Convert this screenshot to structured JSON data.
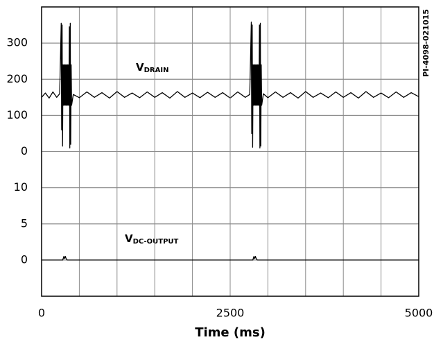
{
  "chart_data": [
    {
      "type": "line",
      "label": "V",
      "label_sub": "DRAIN",
      "annotation": "PI-4098-021015",
      "color": "#000000",
      "xlim": [
        0,
        5000
      ],
      "ylim": [
        0,
        400
      ],
      "yticks": [
        0,
        100,
        200,
        300
      ],
      "grid": true,
      "x": [
        0,
        50,
        100,
        150,
        200,
        240,
        260,
        266,
        272,
        278,
        284,
        290,
        296,
        302,
        308,
        314,
        320,
        326,
        332,
        338,
        344,
        350,
        356,
        362,
        368,
        374,
        380,
        386,
        392,
        398,
        420,
        500,
        600,
        700,
        800,
        900,
        1000,
        1100,
        1200,
        1300,
        1400,
        1500,
        1600,
        1700,
        1800,
        1900,
        2000,
        2100,
        2200,
        2300,
        2400,
        2500,
        2600,
        2700,
        2760,
        2780,
        2786,
        2792,
        2798,
        2804,
        2810,
        2816,
        2822,
        2828,
        2834,
        2840,
        2846,
        2852,
        2858,
        2864,
        2870,
        2876,
        2882,
        2888,
        2894,
        2900,
        2906,
        2912,
        2918,
        2940,
        3000,
        3100,
        3200,
        3300,
        3400,
        3500,
        3600,
        3700,
        3800,
        3900,
        4000,
        4100,
        4200,
        4300,
        4400,
        4500,
        4600,
        4700,
        4800,
        4900,
        5000
      ],
      "values": [
        150,
        162,
        148,
        165,
        150,
        160,
        355,
        60,
        350,
        15,
        240,
        128,
        240,
        128,
        240,
        128,
        240,
        128,
        240,
        128,
        240,
        128,
        240,
        128,
        345,
        10,
        355,
        20,
        240,
        128,
        158,
        149,
        165,
        150,
        163,
        148,
        166,
        150,
        162,
        149,
        165,
        150,
        163,
        148,
        166,
        150,
        162,
        149,
        164,
        150,
        163,
        148,
        165,
        150,
        158,
        358,
        50,
        350,
        12,
        240,
        128,
        240,
        128,
        240,
        128,
        240,
        128,
        240,
        128,
        240,
        128,
        240,
        128,
        350,
        10,
        355,
        15,
        240,
        128,
        160,
        149,
        165,
        150,
        163,
        148,
        166,
        150,
        162,
        149,
        165,
        150,
        163,
        148,
        166,
        150,
        162,
        149,
        165,
        150,
        163,
        152
      ]
    },
    {
      "type": "line",
      "label": "V",
      "label_sub": "DC-OUTPUT",
      "color": "#000000",
      "xlim": [
        0,
        5000
      ],
      "ylim": [
        -5,
        15
      ],
      "yticks": [
        0,
        5,
        10
      ],
      "xticks": [
        0,
        2500,
        5000
      ],
      "xlabel": "Time (ms)",
      "grid": true,
      "x": [
        0,
        280,
        295,
        305,
        315,
        325,
        340,
        2800,
        2815,
        2825,
        2835,
        2845,
        2860,
        5000
      ],
      "values": [
        0,
        0,
        0.5,
        0.2,
        0.5,
        0.2,
        0,
        0,
        0.5,
        0.2,
        0.5,
        0.2,
        0,
        0
      ]
    }
  ]
}
